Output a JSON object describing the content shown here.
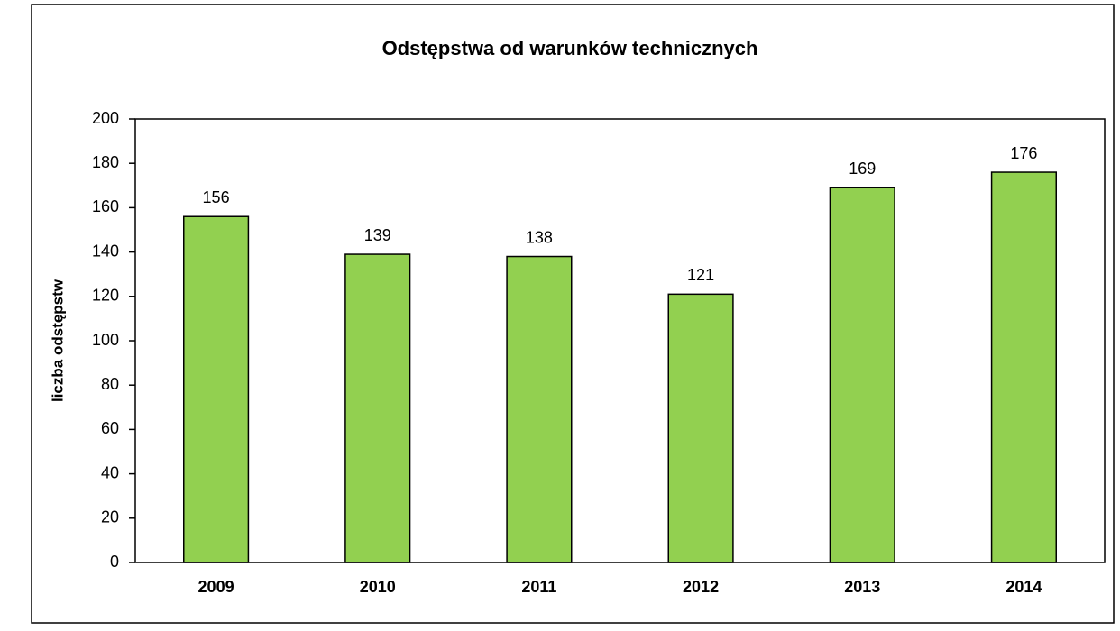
{
  "chart_data": {
    "type": "bar",
    "title": "Odstępstwa od warunków technicznych",
    "y_label": "liczba odstępstw",
    "categories": [
      "2009",
      "2010",
      "2011",
      "2012",
      "2013",
      "2014"
    ],
    "values": [
      156,
      139,
      138,
      121,
      169,
      176
    ],
    "color": "#92d050",
    "ylim": [
      0,
      200
    ],
    "yticks": [
      0,
      20,
      40,
      60,
      80,
      100,
      120,
      140,
      160,
      180,
      200
    ],
    "grid": false
  }
}
